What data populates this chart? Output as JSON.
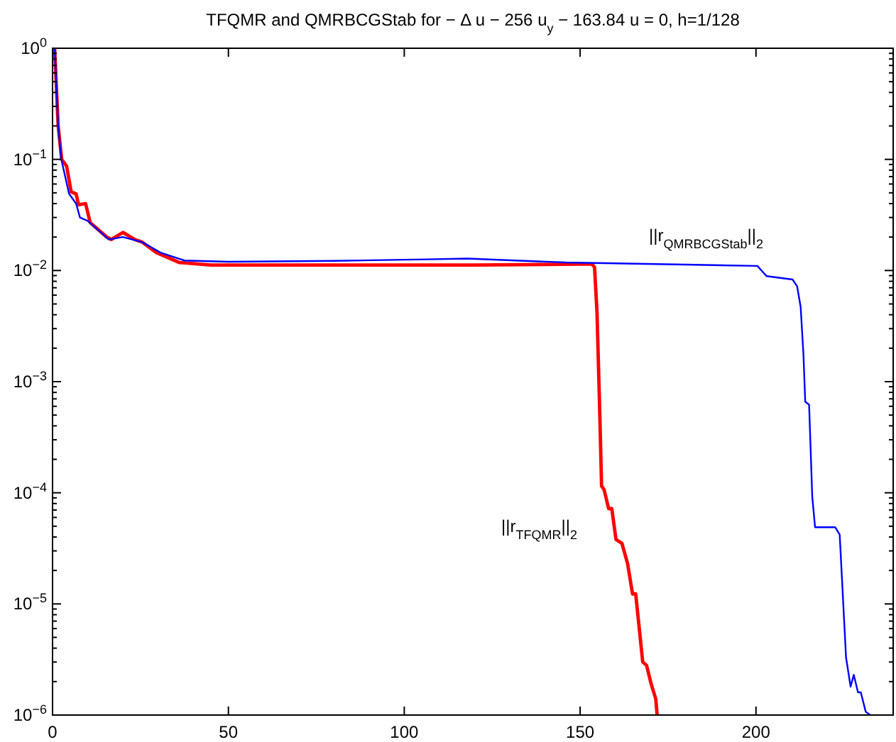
{
  "chart_data": {
    "type": "line",
    "title": "TFQMR and QMRBCGStab for  − Δ u − 256 u$_{y}$ − 163.84 u = 0,  h=1/128",
    "log": "y",
    "grid": false,
    "line_style": "solid",
    "xlim": [
      0,
      239
    ],
    "xticks": [
      0,
      50,
      100,
      150,
      200
    ],
    "ylim": [
      1e-06,
      1
    ],
    "yticks": [
      {
        "value": 1e-06,
        "label": "10$^{−6}$"
      },
      {
        "value": 2e-06,
        "label": null
      },
      {
        "value": 3e-06,
        "label": null
      },
      {
        "value": 4e-06,
        "label": null
      },
      {
        "value": 5e-06,
        "label": null
      },
      {
        "value": 6e-06,
        "label": null
      },
      {
        "value": 7e-06,
        "label": null
      },
      {
        "value": 8e-06,
        "label": null
      },
      {
        "value": 9e-06,
        "label": null
      },
      {
        "value": 1e-05,
        "label": "10$^{−5}$"
      },
      {
        "value": 2e-05,
        "label": null
      },
      {
        "value": 3e-05,
        "label": null
      },
      {
        "value": 4e-05,
        "label": null
      },
      {
        "value": 5e-05,
        "label": null
      },
      {
        "value": 6e-05,
        "label": null
      },
      {
        "value": 7e-05,
        "label": null
      },
      {
        "value": 8e-05,
        "label": null
      },
      {
        "value": 9e-05,
        "label": null
      },
      {
        "value": 0.0001,
        "label": "10$^{−4}$"
      },
      {
        "value": 0.0002,
        "label": null
      },
      {
        "value": 0.0003,
        "label": null
      },
      {
        "value": 0.0004,
        "label": null
      },
      {
        "value": 0.0005,
        "label": null
      },
      {
        "value": 0.0006,
        "label": null
      },
      {
        "value": 0.0007,
        "label": null
      },
      {
        "value": 0.0008,
        "label": null
      },
      {
        "value": 0.0009,
        "label": null
      },
      {
        "value": 0.001,
        "label": "10$^{−3}$"
      },
      {
        "value": 0.002,
        "label": null
      },
      {
        "value": 0.003,
        "label": null
      },
      {
        "value": 0.004,
        "label": null
      },
      {
        "value": 0.005,
        "label": null
      },
      {
        "value": 0.006,
        "label": null
      },
      {
        "value": 0.007,
        "label": null
      },
      {
        "value": 0.008,
        "label": null
      },
      {
        "value": 0.009,
        "label": null
      },
      {
        "value": 0.01,
        "label": "10$^{−2}$"
      },
      {
        "value": 0.02,
        "label": null
      },
      {
        "value": 0.03,
        "label": null
      },
      {
        "value": 0.04,
        "label": null
      },
      {
        "value": 0.05,
        "label": null
      },
      {
        "value": 0.06,
        "label": null
      },
      {
        "value": 0.07,
        "label": null
      },
      {
        "value": 0.08,
        "label": null
      },
      {
        "value": 0.09,
        "label": null
      },
      {
        "value": 0.1,
        "label": "10$^{−1}$"
      },
      {
        "value": 0.2,
        "label": null
      },
      {
        "value": 0.3,
        "label": null
      },
      {
        "value": 0.4,
        "label": null
      },
      {
        "value": 0.5,
        "label": null
      },
      {
        "value": 0.6,
        "label": null
      },
      {
        "value": 0.7,
        "label": null
      },
      {
        "value": 0.8,
        "label": null
      },
      {
        "value": 0.9,
        "label": null
      },
      {
        "value": 1,
        "label": "10$^{0}$"
      }
    ],
    "series": [
      {
        "name": "||r$_{TFQMR}$||$_{2}$",
        "color": "#ff0000",
        "x": [
          0.6,
          1.6,
          2.6,
          4,
          5.3,
          6.7,
          7.4,
          9.4,
          10.7,
          15.4,
          16.7,
          20,
          23.4,
          25.5,
          29.5,
          36,
          45,
          80,
          120,
          150,
          153.4,
          154.1,
          154.8,
          155.5,
          156.1,
          156.8,
          158.1,
          159,
          160.2,
          161.9,
          163.5,
          164.9,
          165.8,
          167.8,
          168.9,
          170.2,
          171.5,
          171.9
        ],
        "values": [
          1,
          0.2,
          0.1,
          0.087,
          0.051,
          0.049,
          0.039,
          0.04,
          0.027,
          0.02,
          0.019,
          0.022,
          0.019,
          0.018,
          0.0145,
          0.0118,
          0.0112,
          0.0112,
          0.0112,
          0.0114,
          0.0114,
          0.0107,
          0.0042,
          0.00066,
          0.000115,
          0.000107,
          7.2e-05,
          7.2e-05,
          3.8e-05,
          3.5e-05,
          2.3e-05,
          1.23e-05,
          1.23e-05,
          3e-06,
          2.8e-06,
          1.9e-06,
          1.4e-06,
          1e-06
        ]
      },
      {
        "name": "||r$_{QMRBCGStab}$||$_{2}$",
        "color": "#0000ff",
        "x": [
          0.6,
          1.6,
          2.5,
          4.7,
          6.7,
          7.8,
          10,
          16,
          20,
          25.5,
          30.7,
          37.5,
          50,
          80,
          106,
          118,
          146,
          180,
          200.4,
          203,
          210.4,
          211.7,
          212.7,
          213.5,
          214,
          215.1,
          216,
          216.8,
          222.5,
          223.8,
          225.6,
          226.9,
          227.8,
          229,
          229.8,
          231.2,
          232.5
        ],
        "values": [
          1,
          0.2,
          0.1,
          0.049,
          0.04,
          0.03,
          0.028,
          0.019,
          0.02,
          0.018,
          0.0145,
          0.0123,
          0.012,
          0.0122,
          0.0126,
          0.0128,
          0.0118,
          0.0113,
          0.011,
          0.0089,
          0.0083,
          0.0072,
          0.0047,
          0.00174,
          0.00066,
          0.00062,
          9.2e-05,
          4.9e-05,
          4.9e-05,
          4.2e-05,
          3.3e-06,
          1.8e-06,
          2.3e-06,
          1.6e-06,
          1.6e-06,
          1.07e-06,
          1e-06
        ]
      }
    ]
  }
}
